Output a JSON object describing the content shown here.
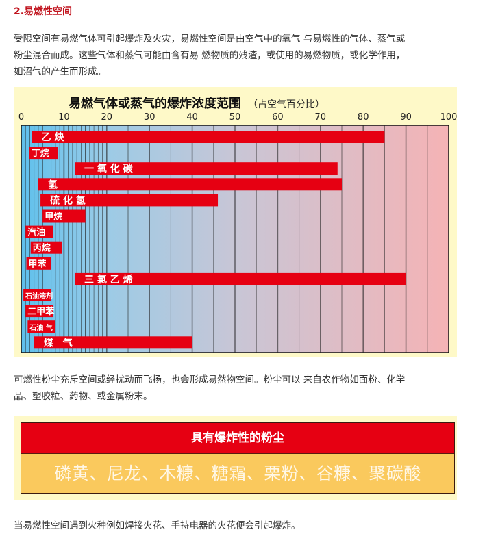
{
  "section_title": "2.易燃性空间",
  "intro_lines": [
    "受限空间有易燃气体可引起爆炸及火灾，易燃性空间是由空气中的氧气 与易燃性的气体、蒸气或",
    "粉尘混合而成。这些气体和蒸气可能由含有易 燃物质的残渣，或使用的易燃物质，或化学作用，",
    "如沼气的产生而形成。"
  ],
  "chart_data": {
    "type": "bar",
    "orientation": "horizontal-range",
    "title": "易燃气体或蒸气的爆炸浓度范围",
    "subtitle": "（占空气百分比）",
    "xlim": [
      0,
      100
    ],
    "xticks": [
      0,
      10,
      20,
      30,
      40,
      50,
      60,
      70,
      80,
      90,
      100
    ],
    "grid": true,
    "colors": {
      "bar": "#e60012",
      "background_low": "#5fc0ec",
      "background_high": "#f5b3b5",
      "panel": "#fef9c8"
    },
    "series": [
      {
        "label": "乙 炔",
        "low": 2.5,
        "high": 85
      },
      {
        "label": "丁烷",
        "low": 1.9,
        "high": 8.5
      },
      {
        "label": "一 氧 化 碳",
        "low": 12.5,
        "high": 74
      },
      {
        "label": "氢",
        "low": 4,
        "high": 75
      },
      {
        "label": "硫 化 氢",
        "low": 4.5,
        "high": 46
      },
      {
        "label": "甲烷",
        "low": 5,
        "high": 15
      },
      {
        "label": "汽油",
        "low": 1,
        "high": 7.5
      },
      {
        "label": "丙烷",
        "low": 2.2,
        "high": 9.5
      },
      {
        "label": "甲苯",
        "low": 1.2,
        "high": 7
      },
      {
        "label": "三 氯 乙 烯",
        "low": 12.5,
        "high": 90
      },
      {
        "label": "石油溶剂",
        "low": 0.5,
        "high": 7
      },
      {
        "label": "二甲苯",
        "low": 1,
        "high": 7.5
      },
      {
        "label": "石油 气",
        "low": 1.5,
        "high": 8
      },
      {
        "label": "煤　气",
        "low": 3,
        "high": 40
      }
    ]
  },
  "dust_lines": [
    "可燃性粉尘充斥空间或经扰动而飞扬，也会形成易然物空间。粉尘可以 来自农作物如面粉、化学",
    "品、塑胶粒、药物、或金属粉末。"
  ],
  "dust_table": {
    "header": "具有爆炸性的粉尘",
    "items": "磷黄、尼龙、木糠、糖霜、栗粉、谷糠、聚碳酸"
  },
  "closing": "当易燃性空间遇到火种例如焊接火花、手持电器的火花便会引起爆炸。"
}
